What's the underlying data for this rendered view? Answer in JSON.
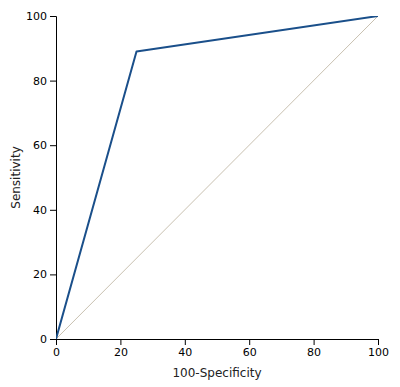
{
  "chart_data": {
    "type": "line",
    "xlabel": "100-Specificity",
    "ylabel": "Sensitivity",
    "series": [
      {
        "x": [
          0,
          100
        ],
        "values": [
          0,
          100
        ],
        "color": "#c8c0b0"
      },
      {
        "x": [
          0,
          0,
          25,
          100
        ],
        "values": [
          0,
          0,
          89,
          100
        ],
        "color": "#1a4f8a"
      }
    ],
    "xlim": [
      0,
      100
    ],
    "ylim": [
      0,
      100
    ],
    "xticks": [
      0,
      20,
      40,
      60,
      80,
      100
    ],
    "yticks": [
      0,
      20,
      40,
      60,
      80,
      100
    ],
    "grid": false
  }
}
